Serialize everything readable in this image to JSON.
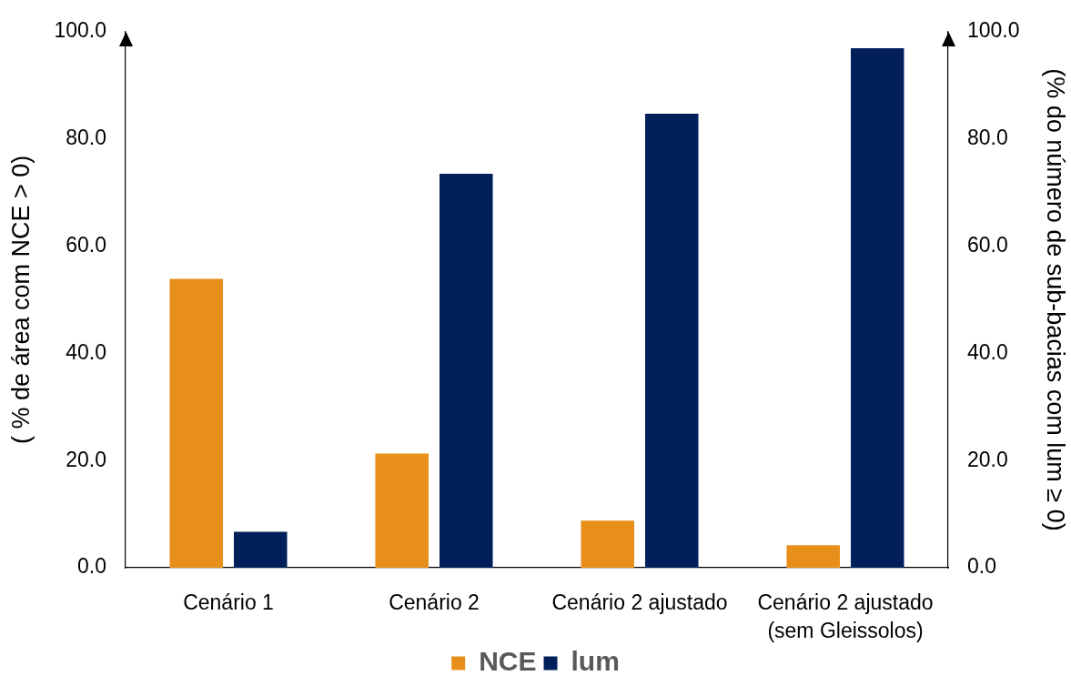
{
  "chart_data": {
    "type": "bar",
    "categories": [
      "Cenário 1",
      "Cenário 2",
      "Cenário 2 ajustado",
      "Cenário 2 ajustado (sem Gleissolos)"
    ],
    "series": [
      {
        "name": "NCE",
        "color": "#e88e1a",
        "values": [
          53.9,
          21.3,
          8.8,
          4.2
        ]
      },
      {
        "name": "lum",
        "color": "#001f5b",
        "axis": "y2",
        "values": [
          6.7,
          73.5,
          84.7,
          96.9
        ]
      }
    ],
    "ylabel": "( % de área com NCE > 0)",
    "y2label": "(% do número de sub-bacias com lum ≥ 0)",
    "ylim": [
      0,
      100
    ],
    "yticks": [
      {
        "value": 0,
        "label": "0.0"
      },
      {
        "value": 20,
        "label": "20.0"
      },
      {
        "value": 40,
        "label": "40.0"
      },
      {
        "value": 60,
        "label": "60.0"
      },
      {
        "value": 80,
        "label": "80.0"
      },
      {
        "value": 100,
        "label": "100.0"
      }
    ],
    "y2lim": [
      0,
      100
    ],
    "y2ticks": [
      {
        "value": 0,
        "label": "0.0"
      },
      {
        "value": 20,
        "label": "20.0"
      },
      {
        "value": 40,
        "label": "40.0"
      },
      {
        "value": 60,
        "label": "60.0"
      },
      {
        "value": 80,
        "label": "80.0"
      },
      {
        "value": 100,
        "label": "100.0"
      }
    ],
    "legend": "bottom"
  }
}
